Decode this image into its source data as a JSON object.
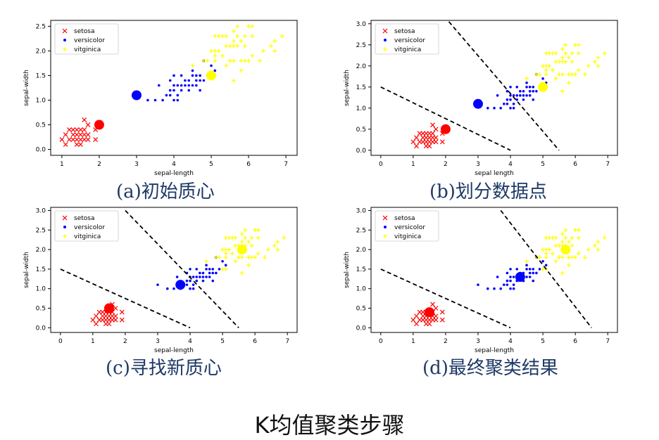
{
  "page_title": "K均值聚类步骤",
  "chart_data": [
    {
      "type": "scatter",
      "caption": "(a)初始质心",
      "xlabel": "sepal-length",
      "ylabel": "sepal-width",
      "xlim": [
        0.7,
        7.3
      ],
      "ylim": [
        -0.12,
        2.62
      ],
      "xticks": [
        1,
        2,
        3,
        4,
        5,
        6,
        7
      ],
      "yticks": [
        0.0,
        0.5,
        1.0,
        1.5,
        2.0,
        2.5
      ],
      "legend": {
        "position": "top-left",
        "entries": [
          "setosa",
          "versicolor",
          "vitginica"
        ]
      },
      "centroids": [
        {
          "label": "setosa",
          "x": 2.0,
          "y": 0.5
        },
        {
          "label": "versicolor",
          "x": 3.0,
          "y": 1.1
        },
        {
          "label": "vitginica",
          "x": 5.0,
          "y": 1.5
        }
      ],
      "boundaries": []
    },
    {
      "type": "scatter",
      "caption": "(b)划分数据点",
      "xlabel": "sepal length",
      "ylabel": "sepal-width",
      "xlim": [
        -0.3,
        7.3
      ],
      "ylim": [
        -0.12,
        3.08
      ],
      "xticks": [
        0,
        1,
        2,
        3,
        4,
        5,
        6,
        7
      ],
      "yticks": [
        0.0,
        0.5,
        1.0,
        1.5,
        2.0,
        2.5,
        3.0
      ],
      "legend": {
        "position": "top-left",
        "entries": [
          "setosa",
          "versicolor",
          "vitginica"
        ]
      },
      "centroids": [
        {
          "label": "setosa",
          "x": 2.0,
          "y": 0.5
        },
        {
          "label": "versicolor",
          "x": 3.0,
          "y": 1.1
        },
        {
          "label": "vitginica",
          "x": 5.0,
          "y": 1.5
        }
      ],
      "boundaries": [
        {
          "x1": 0,
          "y1": 1.5,
          "x2": 4.0,
          "y2": 0.0
        },
        {
          "x1": 2.1,
          "y1": 3.05,
          "x2": 5.5,
          "y2": 0.0
        }
      ]
    },
    {
      "type": "scatter",
      "caption": "(c)寻找新质心",
      "xlabel": "sepal-length",
      "ylabel": "sepal-width",
      "xlim": [
        -0.3,
        7.3
      ],
      "ylim": [
        -0.12,
        3.08
      ],
      "xticks": [
        0,
        1,
        2,
        3,
        4,
        5,
        6,
        7
      ],
      "yticks": [
        0.0,
        0.5,
        1.0,
        1.5,
        2.0,
        2.5,
        3.0
      ],
      "legend": {
        "position": "top-left",
        "entries": [
          "setosa",
          "versicolor",
          "vitginica"
        ]
      },
      "centroids": [
        {
          "label": "setosa",
          "x": 1.5,
          "y": 0.5
        },
        {
          "label": "versicolor",
          "x": 3.7,
          "y": 1.1
        },
        {
          "label": "vitginica",
          "x": 5.6,
          "y": 2.0
        }
      ],
      "boundaries": [
        {
          "x1": 0,
          "y1": 1.5,
          "x2": 4.0,
          "y2": 0.0
        },
        {
          "x1": 2.0,
          "y1": 3.0,
          "x2": 5.5,
          "y2": 0.0
        }
      ]
    },
    {
      "type": "scatter",
      "caption": "(d)最终聚类结果",
      "xlabel": "sepal-length",
      "ylabel": "sepal-width",
      "xlim": [
        -0.3,
        7.3
      ],
      "ylim": [
        -0.12,
        3.08
      ],
      "xticks": [
        0,
        1,
        2,
        3,
        4,
        5,
        6,
        7
      ],
      "yticks": [
        0.0,
        0.5,
        1.0,
        1.5,
        2.0,
        2.5,
        3.0
      ],
      "legend": {
        "position": "top-left",
        "entries": [
          "setosa",
          "versicolor",
          "vitginica"
        ]
      },
      "centroids": [
        {
          "label": "setosa",
          "x": 1.5,
          "y": 0.4
        },
        {
          "label": "versicolor",
          "x": 4.3,
          "y": 1.3
        },
        {
          "label": "vitginica",
          "x": 5.7,
          "y": 2.0
        }
      ],
      "boundaries": [
        {
          "x1": 0,
          "y1": 1.5,
          "x2": 4.0,
          "y2": 0.0
        },
        {
          "x1": 3.7,
          "y1": 3.0,
          "x2": 6.5,
          "y2": 0.0
        }
      ]
    }
  ],
  "series": [
    {
      "name": "setosa",
      "color": "#ff0000",
      "marker": "x",
      "points": [
        [
          1.0,
          0.2
        ],
        [
          1.1,
          0.1
        ],
        [
          1.2,
          0.2
        ],
        [
          1.3,
          0.2
        ],
        [
          1.3,
          0.3
        ],
        [
          1.3,
          0.4
        ],
        [
          1.4,
          0.1
        ],
        [
          1.4,
          0.2
        ],
        [
          1.4,
          0.3
        ],
        [
          1.4,
          0.4
        ],
        [
          1.5,
          0.1
        ],
        [
          1.5,
          0.2
        ],
        [
          1.5,
          0.3
        ],
        [
          1.5,
          0.4
        ],
        [
          1.6,
          0.2
        ],
        [
          1.6,
          0.4
        ],
        [
          1.6,
          0.6
        ],
        [
          1.7,
          0.2
        ],
        [
          1.7,
          0.3
        ],
        [
          1.7,
          0.5
        ],
        [
          1.9,
          0.2
        ],
        [
          1.9,
          0.4
        ],
        [
          1.2,
          0.4
        ],
        [
          1.1,
          0.3
        ],
        [
          1.6,
          0.3
        ]
      ]
    },
    {
      "name": "versicolor",
      "color": "#0000ff",
      "marker": "dot",
      "points": [
        [
          3.0,
          1.1
        ],
        [
          3.3,
          1.0
        ],
        [
          3.5,
          1.0
        ],
        [
          3.6,
          1.3
        ],
        [
          3.7,
          1.0
        ],
        [
          3.8,
          1.1
        ],
        [
          3.9,
          1.1
        ],
        [
          3.9,
          1.2
        ],
        [
          3.9,
          1.4
        ],
        [
          4.0,
          1.0
        ],
        [
          4.0,
          1.2
        ],
        [
          4.0,
          1.3
        ],
        [
          4.1,
          1.0
        ],
        [
          4.1,
          1.3
        ],
        [
          4.2,
          1.2
        ],
        [
          4.2,
          1.3
        ],
        [
          4.2,
          1.5
        ],
        [
          4.3,
          1.3
        ],
        [
          4.4,
          1.2
        ],
        [
          4.4,
          1.3
        ],
        [
          4.4,
          1.4
        ],
        [
          4.5,
          1.3
        ],
        [
          4.5,
          1.5
        ],
        [
          4.5,
          1.6
        ],
        [
          4.6,
          1.3
        ],
        [
          4.6,
          1.4
        ],
        [
          4.6,
          1.5
        ],
        [
          4.7,
          1.2
        ],
        [
          4.7,
          1.4
        ],
        [
          4.7,
          1.5
        ],
        [
          4.8,
          1.4
        ],
        [
          4.8,
          1.8
        ],
        [
          4.9,
          1.5
        ],
        [
          5.0,
          1.7
        ],
        [
          5.1,
          1.6
        ],
        [
          4.0,
          1.5
        ],
        [
          4.3,
          1.4
        ],
        [
          4.1,
          1.1
        ]
      ]
    },
    {
      "name": "vitginica",
      "color": "#ffff00",
      "marker": "plus",
      "points": [
        [
          4.5,
          1.7
        ],
        [
          4.8,
          1.8
        ],
        [
          4.9,
          1.8
        ],
        [
          5.0,
          1.5
        ],
        [
          5.0,
          2.0
        ],
        [
          5.1,
          1.5
        ],
        [
          5.1,
          1.8
        ],
        [
          5.1,
          1.9
        ],
        [
          5.1,
          2.0
        ],
        [
          5.1,
          2.3
        ],
        [
          5.2,
          2.0
        ],
        [
          5.2,
          2.3
        ],
        [
          5.3,
          1.9
        ],
        [
          5.3,
          2.3
        ],
        [
          5.4,
          2.1
        ],
        [
          5.4,
          2.3
        ],
        [
          5.5,
          1.8
        ],
        [
          5.5,
          2.1
        ],
        [
          5.5,
          1.8
        ],
        [
          5.6,
          1.4
        ],
        [
          5.6,
          1.8
        ],
        [
          5.6,
          2.1
        ],
        [
          5.6,
          2.2
        ],
        [
          5.6,
          2.4
        ],
        [
          5.7,
          2.1
        ],
        [
          5.7,
          2.3
        ],
        [
          5.7,
          2.5
        ],
        [
          5.8,
          1.6
        ],
        [
          5.8,
          1.8
        ],
        [
          5.8,
          2.2
        ],
        [
          5.9,
          2.1
        ],
        [
          5.9,
          2.3
        ],
        [
          6.0,
          1.8
        ],
        [
          6.0,
          2.5
        ],
        [
          6.1,
          1.9
        ],
        [
          6.1,
          2.3
        ],
        [
          6.1,
          2.5
        ],
        [
          6.3,
          1.8
        ],
        [
          6.4,
          2.0
        ],
        [
          6.6,
          2.1
        ],
        [
          6.7,
          2.0
        ],
        [
          6.7,
          2.2
        ],
        [
          6.9,
          2.3
        ],
        [
          5.4,
          1.7
        ],
        [
          5.9,
          1.8
        ]
      ]
    }
  ]
}
